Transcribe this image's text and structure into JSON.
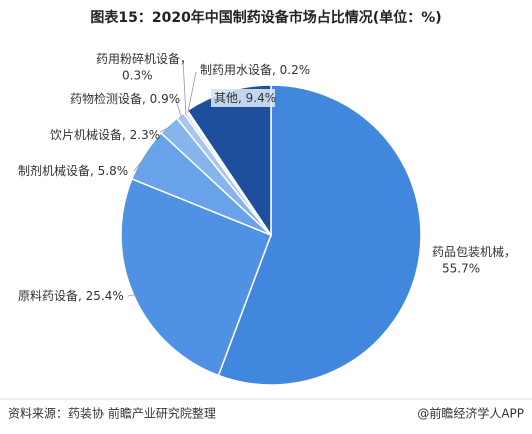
{
  "chart_data": {
    "type": "pie",
    "title": "图表15：2020年中国制药设备市场占比情况(单位：%)",
    "categories": [
      "药品包装机械，",
      "原料药设备",
      "制剂机械设备",
      "饮片机械设备",
      "药物检测设备",
      "药用粉碎机设备，",
      "制药用水设备",
      "其他"
    ],
    "values": [
      55.7,
      25.4,
      5.8,
      2.3,
      0.9,
      0.3,
      0.2,
      9.4
    ],
    "value_labels": [
      "55.7%",
      ", 25.4%",
      ", 5.8%",
      ", 2.3%",
      ", 0.9%",
      "0.3%",
      ", 0.2%",
      ", 9.4%"
    ],
    "colors": [
      "#4287de",
      "#4f92e3",
      "#68a2e8",
      "#86b5ed",
      "#a6c7f1",
      "#c3daf6",
      "#dbe8f9",
      "#1d4f9c"
    ],
    "source": "资料来源：药装协 前瞻产业研究院整理",
    "credit": "@前瞻经济学人APP"
  }
}
